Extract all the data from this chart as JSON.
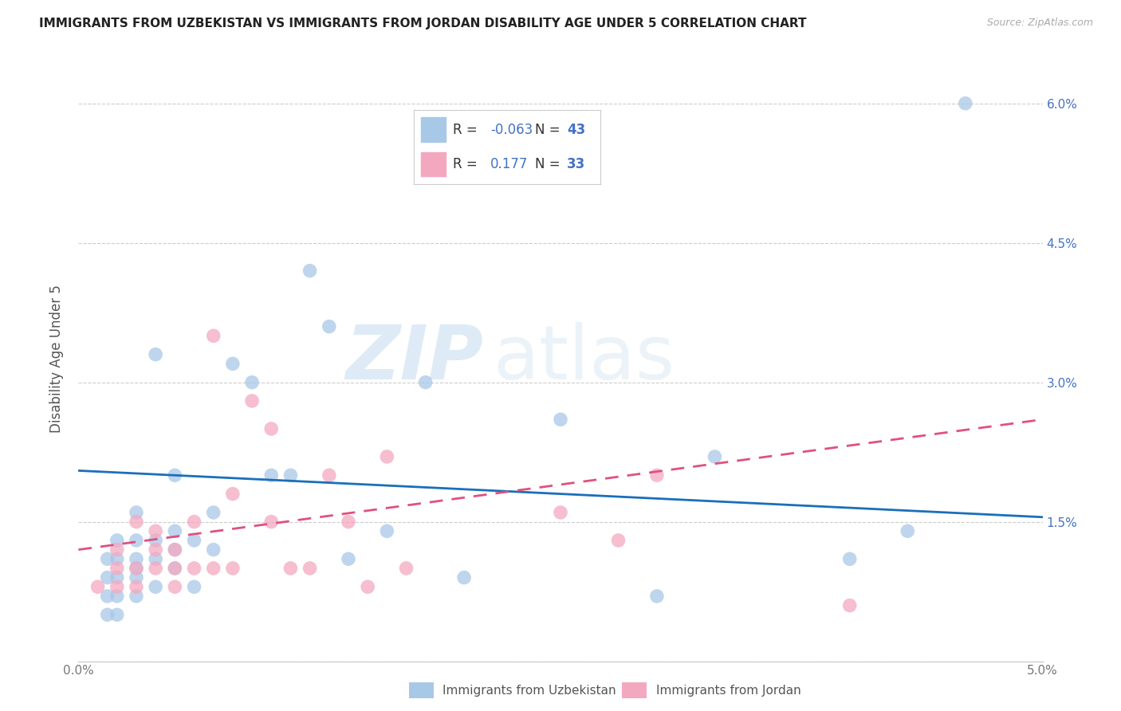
{
  "title": "IMMIGRANTS FROM UZBEKISTAN VS IMMIGRANTS FROM JORDAN DISABILITY AGE UNDER 5 CORRELATION CHART",
  "source": "Source: ZipAtlas.com",
  "ylabel": "Disability Age Under 5",
  "legend_uzb": "Immigrants from Uzbekistan",
  "legend_jor": "Immigrants from Jordan",
  "r_uzb": "-0.063",
  "n_uzb": "43",
  "r_jor": "0.177",
  "n_jor": "33",
  "xmin": 0.0,
  "xmax": 0.05,
  "ymin": 0.0,
  "ymax": 0.065,
  "yticks": [
    0.0,
    0.015,
    0.03,
    0.045,
    0.06
  ],
  "ytick_labels": [
    "",
    "1.5%",
    "3.0%",
    "4.5%",
    "6.0%"
  ],
  "xticks": [
    0.0,
    0.01,
    0.02,
    0.03,
    0.04,
    0.05
  ],
  "xtick_labels": [
    "0.0%",
    "",
    "",
    "",
    "",
    "5.0%"
  ],
  "color_uzb": "#a8c8e8",
  "color_jor": "#f4a8c0",
  "line_color_uzb": "#1a6fba",
  "line_color_jor": "#e05080",
  "watermark_zip": "ZIP",
  "watermark_atlas": "atlas",
  "uzb_x": [
    0.0015,
    0.0015,
    0.0015,
    0.0015,
    0.002,
    0.002,
    0.002,
    0.002,
    0.002,
    0.003,
    0.003,
    0.003,
    0.003,
    0.003,
    0.003,
    0.004,
    0.004,
    0.004,
    0.004,
    0.005,
    0.005,
    0.005,
    0.005,
    0.006,
    0.006,
    0.007,
    0.007,
    0.008,
    0.009,
    0.01,
    0.011,
    0.012,
    0.013,
    0.014,
    0.016,
    0.018,
    0.02,
    0.025,
    0.03,
    0.033,
    0.04,
    0.043,
    0.046
  ],
  "uzb_y": [
    0.005,
    0.007,
    0.009,
    0.011,
    0.005,
    0.007,
    0.009,
    0.011,
    0.013,
    0.007,
    0.009,
    0.01,
    0.011,
    0.013,
    0.016,
    0.008,
    0.011,
    0.013,
    0.033,
    0.01,
    0.012,
    0.014,
    0.02,
    0.008,
    0.013,
    0.012,
    0.016,
    0.032,
    0.03,
    0.02,
    0.02,
    0.042,
    0.036,
    0.011,
    0.014,
    0.03,
    0.009,
    0.026,
    0.007,
    0.022,
    0.011,
    0.014,
    0.06
  ],
  "jor_x": [
    0.001,
    0.002,
    0.002,
    0.002,
    0.003,
    0.003,
    0.003,
    0.004,
    0.004,
    0.004,
    0.005,
    0.005,
    0.005,
    0.006,
    0.006,
    0.007,
    0.007,
    0.008,
    0.008,
    0.009,
    0.01,
    0.01,
    0.011,
    0.012,
    0.013,
    0.014,
    0.015,
    0.016,
    0.017,
    0.025,
    0.028,
    0.03,
    0.04
  ],
  "jor_y": [
    0.008,
    0.008,
    0.01,
    0.012,
    0.008,
    0.01,
    0.015,
    0.01,
    0.012,
    0.014,
    0.008,
    0.01,
    0.012,
    0.01,
    0.015,
    0.01,
    0.035,
    0.01,
    0.018,
    0.028,
    0.025,
    0.015,
    0.01,
    0.01,
    0.02,
    0.015,
    0.008,
    0.022,
    0.01,
    0.016,
    0.013,
    0.02,
    0.006
  ]
}
